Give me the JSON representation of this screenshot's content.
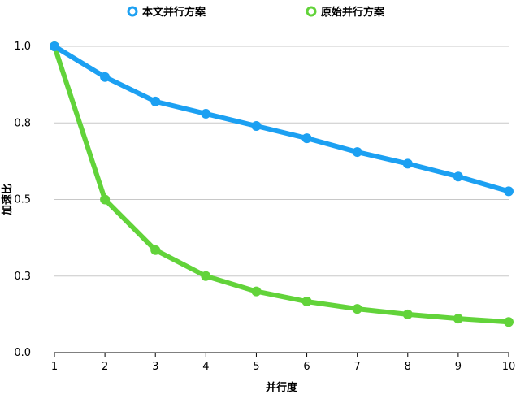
{
  "chart_data": {
    "type": "line",
    "title": "",
    "xlabel": "并行度",
    "ylabel": "加速比",
    "x": [
      1,
      2,
      3,
      4,
      5,
      6,
      7,
      8,
      9,
      10
    ],
    "xlim": [
      1,
      10
    ],
    "ylim": [
      0,
      1.0
    ],
    "yticks": [
      0.0,
      0.25,
      0.5,
      0.75,
      1.0
    ],
    "ytick_labels": [
      "0.0",
      "0.3",
      "0.5",
      "0.8",
      "1.0"
    ],
    "xtick_labels": [
      "1",
      "2",
      "3",
      "4",
      "5",
      "6",
      "7",
      "8",
      "9",
      "10"
    ],
    "grid": true,
    "legend_position": "top-center",
    "series": [
      {
        "name": "本文并行方案",
        "color": "#1ca0f2",
        "values": [
          1.0,
          0.9,
          0.82,
          0.78,
          0.74,
          0.7,
          0.655,
          0.617,
          0.575,
          0.527
        ]
      },
      {
        "name": "原始并行方案",
        "color": "#62d33a",
        "values": [
          1.0,
          0.5,
          0.335,
          0.25,
          0.2,
          0.167,
          0.143,
          0.125,
          0.111,
          0.1
        ]
      }
    ]
  }
}
